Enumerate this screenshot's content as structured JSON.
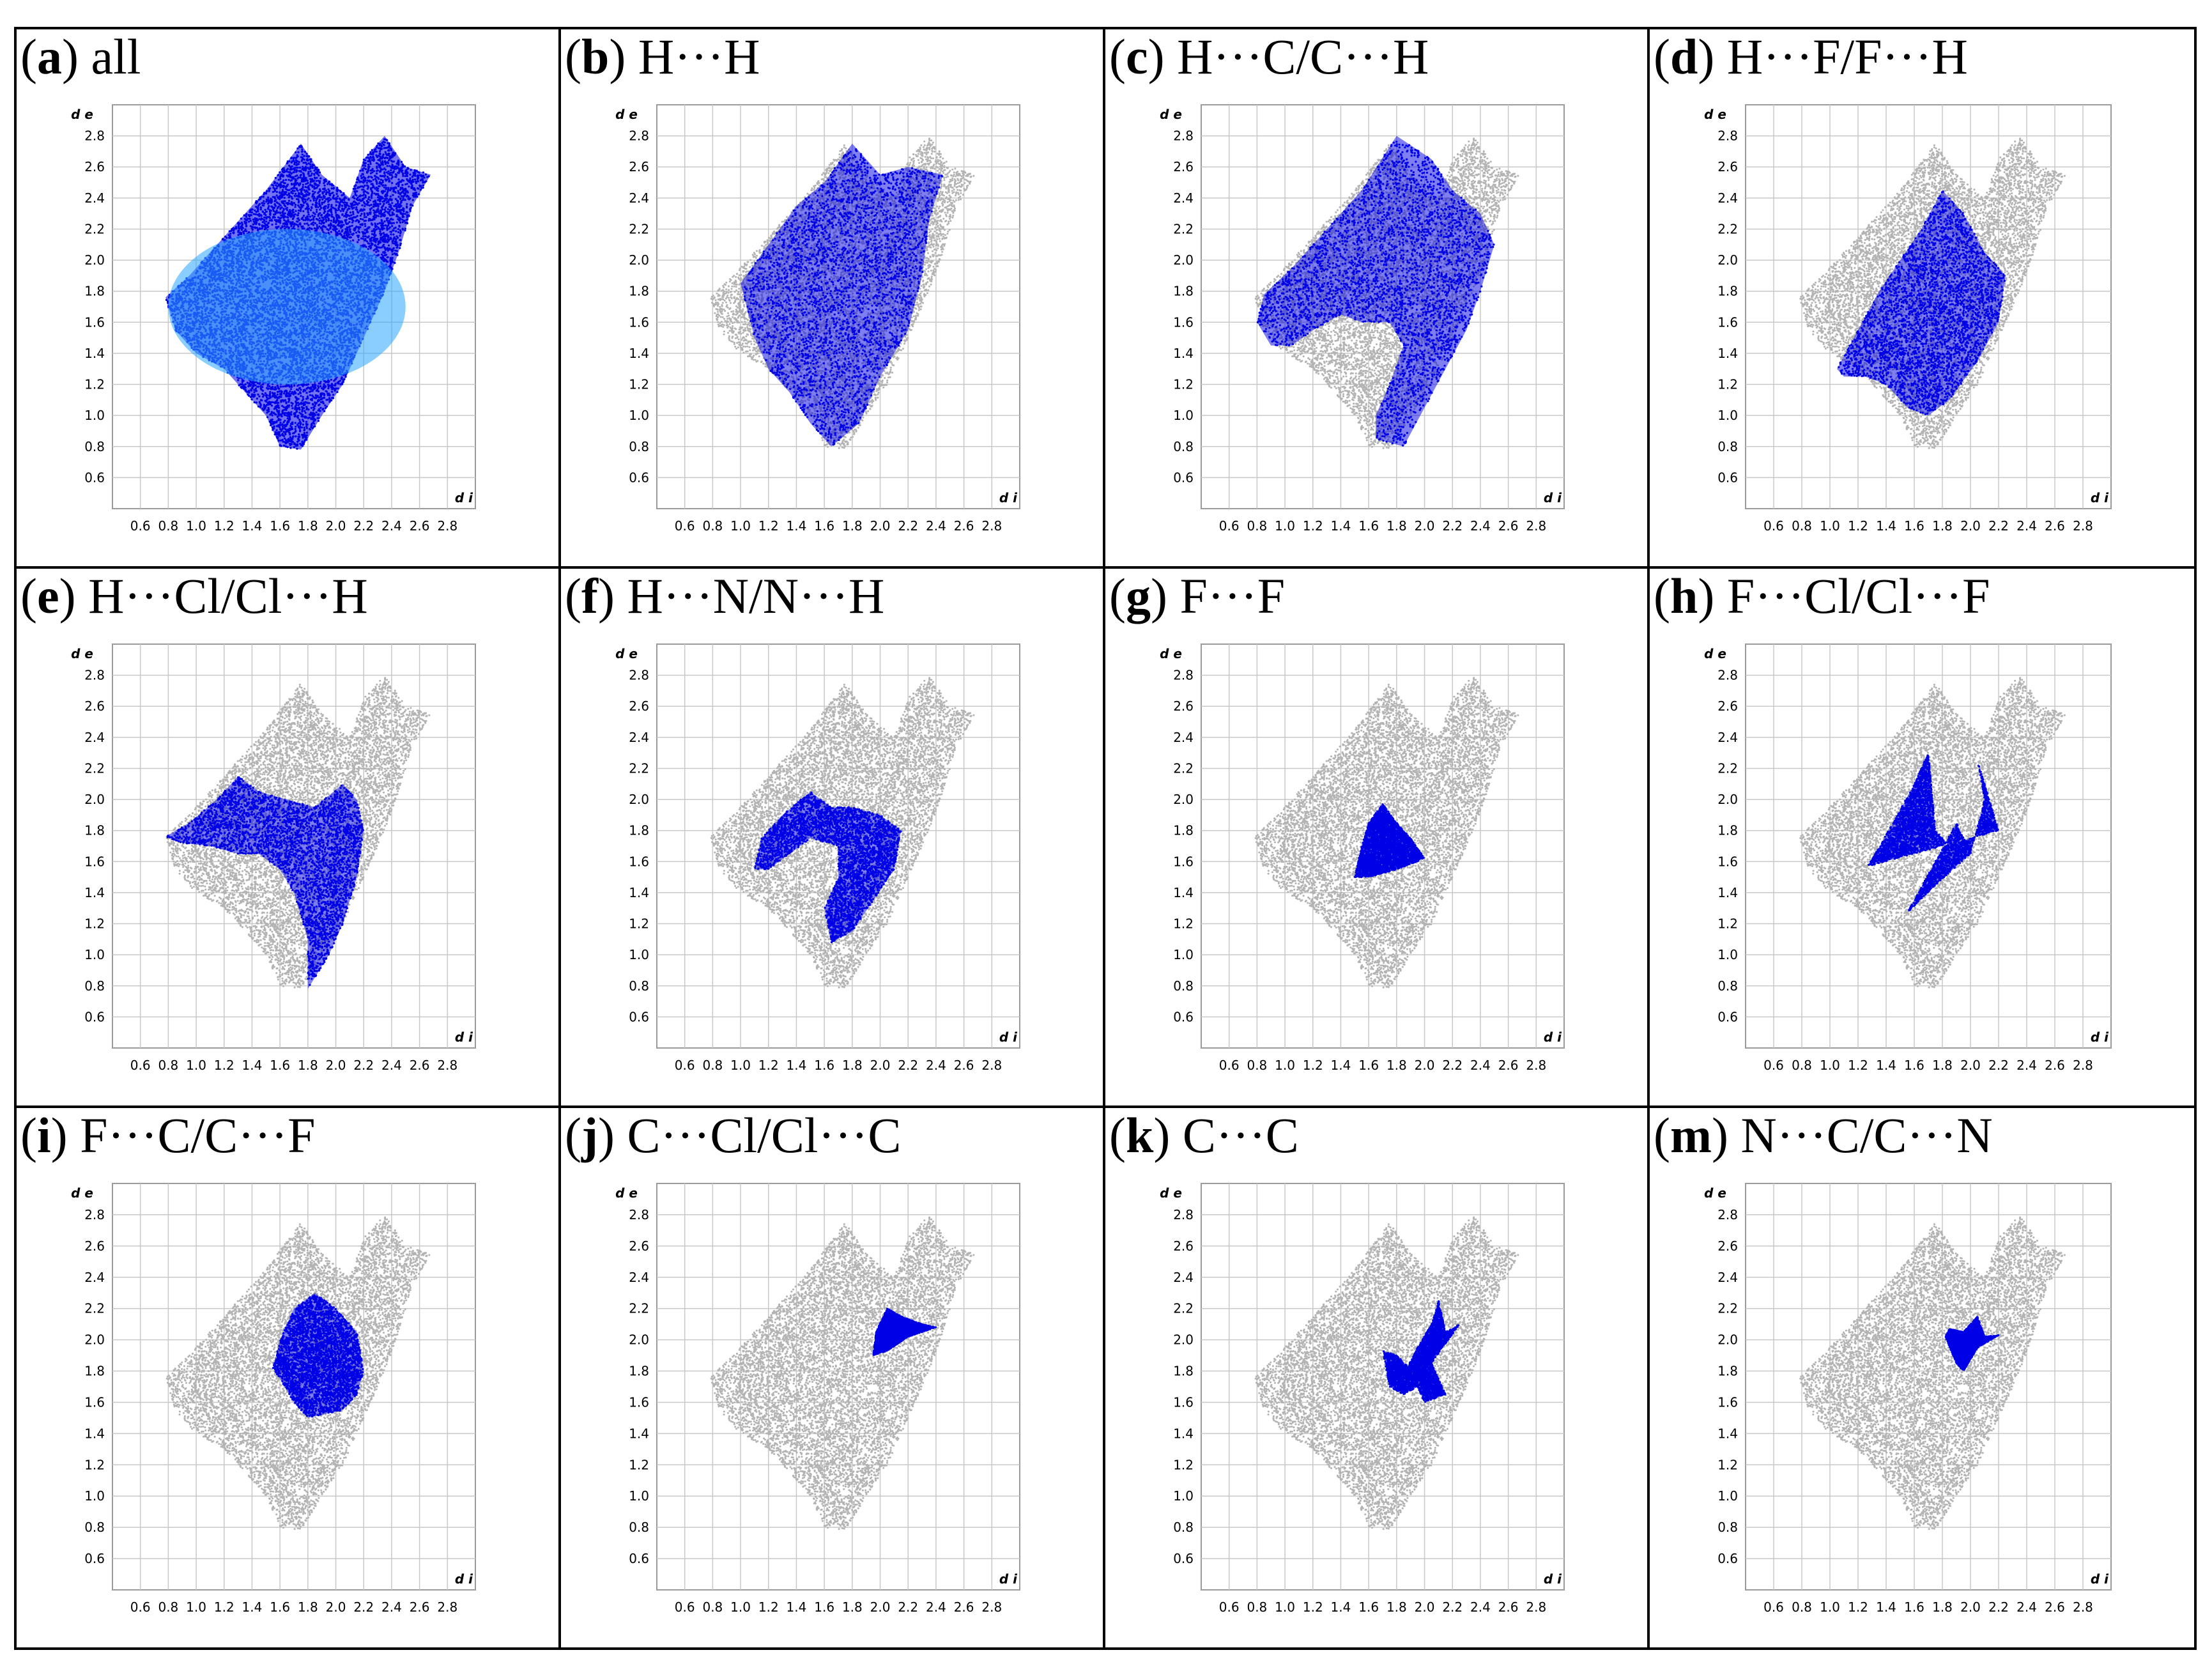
{
  "figure": {
    "colors": {
      "background_points": "#b3b3b3",
      "highlight_points": "#0000e6",
      "gridline": "#c8c8c8"
    }
  },
  "chart_data": [
    {
      "label": "a",
      "title": "all",
      "type": "scatter",
      "xlabel": "d i",
      "ylabel": "d e",
      "xlim": [
        0.4,
        3.0
      ],
      "ylim": [
        0.4,
        3.0
      ],
      "x_ticks": [
        "0.6",
        "0.8",
        "1.0",
        "1.2",
        "1.4",
        "1.6",
        "1.8",
        "2.0",
        "2.2",
        "2.4",
        "2.6",
        "2.8"
      ],
      "y_ticks": [
        "0.6",
        "0.8",
        "1.0",
        "1.2",
        "1.4",
        "1.6",
        "1.8",
        "2.0",
        "2.2",
        "2.4",
        "2.6",
        "2.8"
      ],
      "highlight": [
        [
          0.78,
          1.76
        ],
        [
          0.95,
          1.9
        ],
        [
          1.1,
          2.05
        ],
        [
          1.3,
          2.25
        ],
        [
          1.5,
          2.45
        ],
        [
          1.75,
          2.75
        ],
        [
          1.9,
          2.55
        ],
        [
          2.1,
          2.4
        ],
        [
          2.2,
          2.65
        ],
        [
          2.35,
          2.8
        ],
        [
          2.5,
          2.6
        ],
        [
          2.68,
          2.55
        ],
        [
          2.55,
          2.35
        ],
        [
          2.45,
          2.05
        ],
        [
          2.35,
          1.8
        ],
        [
          2.2,
          1.5
        ],
        [
          2.05,
          1.2
        ],
        [
          1.9,
          1.0
        ],
        [
          1.75,
          0.78
        ],
        [
          1.6,
          0.8
        ],
        [
          1.5,
          1.0
        ],
        [
          1.35,
          1.15
        ],
        [
          1.2,
          1.3
        ],
        [
          1.0,
          1.4
        ],
        [
          0.85,
          1.55
        ]
      ]
    },
    {
      "label": "b",
      "title": "H···H",
      "type": "scatter",
      "xlabel": "d i",
      "ylabel": "d e",
      "xlim": [
        0.4,
        3.0
      ],
      "ylim": [
        0.4,
        3.0
      ],
      "x_ticks": [
        "0.6",
        "0.8",
        "1.0",
        "1.2",
        "1.4",
        "1.6",
        "1.8",
        "2.0",
        "2.2",
        "2.4",
        "2.6",
        "2.8"
      ],
      "y_ticks": [
        "0.6",
        "0.8",
        "1.0",
        "1.2",
        "1.4",
        "1.6",
        "1.8",
        "2.0",
        "2.2",
        "2.4",
        "2.6",
        "2.8"
      ],
      "highlight": [
        [
          1.0,
          1.85
        ],
        [
          1.2,
          2.1
        ],
        [
          1.4,
          2.35
        ],
        [
          1.6,
          2.5
        ],
        [
          1.8,
          2.75
        ],
        [
          2.0,
          2.55
        ],
        [
          2.2,
          2.6
        ],
        [
          2.45,
          2.55
        ],
        [
          2.35,
          2.25
        ],
        [
          2.3,
          1.9
        ],
        [
          2.2,
          1.55
        ],
        [
          2.0,
          1.25
        ],
        [
          1.85,
          0.95
        ],
        [
          1.65,
          0.8
        ],
        [
          1.5,
          0.95
        ],
        [
          1.35,
          1.15
        ],
        [
          1.2,
          1.3
        ],
        [
          1.1,
          1.5
        ]
      ]
    },
    {
      "label": "c",
      "title": "H···C/C···H",
      "type": "scatter",
      "xlabel": "d i",
      "ylabel": "d e",
      "xlim": [
        0.4,
        3.0
      ],
      "ylim": [
        0.4,
        3.0
      ],
      "x_ticks": [
        "0.6",
        "0.8",
        "1.0",
        "1.2",
        "1.4",
        "1.6",
        "1.8",
        "2.0",
        "2.2",
        "2.4",
        "2.6",
        "2.8"
      ],
      "y_ticks": [
        "0.6",
        "0.8",
        "1.0",
        "1.2",
        "1.4",
        "1.6",
        "1.8",
        "2.0",
        "2.2",
        "2.4",
        "2.6",
        "2.8"
      ],
      "highlight": [
        [
          0.8,
          1.6
        ],
        [
          0.85,
          1.78
        ],
        [
          1.05,
          1.95
        ],
        [
          1.3,
          2.2
        ],
        [
          1.55,
          2.45
        ],
        [
          1.8,
          2.8
        ],
        [
          2.05,
          2.65
        ],
        [
          2.2,
          2.45
        ],
        [
          2.4,
          2.3
        ],
        [
          2.5,
          2.1
        ],
        [
          2.4,
          1.8
        ],
        [
          2.3,
          1.55
        ],
        [
          2.15,
          1.3
        ],
        [
          2.0,
          1.05
        ],
        [
          1.85,
          0.8
        ],
        [
          1.65,
          0.85
        ],
        [
          1.65,
          1.0
        ],
        [
          1.75,
          1.2
        ],
        [
          1.85,
          1.45
        ],
        [
          1.75,
          1.6
        ],
        [
          1.55,
          1.6
        ],
        [
          1.4,
          1.65
        ],
        [
          1.2,
          1.55
        ],
        [
          1.05,
          1.45
        ],
        [
          0.9,
          1.45
        ]
      ]
    },
    {
      "label": "d",
      "title": "H···F/F···H",
      "type": "scatter",
      "xlabel": "d i",
      "ylabel": "d e",
      "xlim": [
        0.4,
        3.0
      ],
      "ylim": [
        0.4,
        3.0
      ],
      "x_ticks": [
        "0.6",
        "0.8",
        "1.0",
        "1.2",
        "1.4",
        "1.6",
        "1.8",
        "2.0",
        "2.2",
        "2.4",
        "2.6",
        "2.8"
      ],
      "y_ticks": [
        "0.6",
        "0.8",
        "1.0",
        "1.2",
        "1.4",
        "1.6",
        "1.8",
        "2.0",
        "2.2",
        "2.4",
        "2.6",
        "2.8"
      ],
      "highlight": [
        [
          1.05,
          1.3
        ],
        [
          1.2,
          1.55
        ],
        [
          1.35,
          1.8
        ],
        [
          1.5,
          2.0
        ],
        [
          1.65,
          2.2
        ],
        [
          1.8,
          2.45
        ],
        [
          1.95,
          2.3
        ],
        [
          2.1,
          2.05
        ],
        [
          2.25,
          1.9
        ],
        [
          2.2,
          1.6
        ],
        [
          2.05,
          1.35
        ],
        [
          1.85,
          1.1
        ],
        [
          1.7,
          1.0
        ],
        [
          1.55,
          1.05
        ],
        [
          1.4,
          1.2
        ],
        [
          1.25,
          1.25
        ],
        [
          1.1,
          1.25
        ]
      ]
    },
    {
      "label": "e",
      "title": "H···Cl/Cl···H",
      "type": "scatter",
      "xlabel": "d i",
      "ylabel": "d e",
      "xlim": [
        0.4,
        3.0
      ],
      "ylim": [
        0.4,
        3.0
      ],
      "x_ticks": [
        "0.6",
        "0.8",
        "1.0",
        "1.2",
        "1.4",
        "1.6",
        "1.8",
        "2.0",
        "2.2",
        "2.4",
        "2.6",
        "2.8"
      ],
      "y_ticks": [
        "0.6",
        "0.8",
        "1.0",
        "1.2",
        "1.4",
        "1.6",
        "1.8",
        "2.0",
        "2.2",
        "2.4",
        "2.6",
        "2.8"
      ],
      "highlight": [
        [
          0.78,
          1.76
        ],
        [
          0.95,
          1.85
        ],
        [
          1.15,
          2.0
        ],
        [
          1.3,
          2.15
        ],
        [
          1.45,
          2.05
        ],
        [
          1.65,
          2.0
        ],
        [
          1.85,
          1.95
        ],
        [
          2.05,
          2.1
        ],
        [
          2.15,
          2.0
        ],
        [
          2.2,
          1.8
        ],
        [
          2.15,
          1.5
        ],
        [
          2.05,
          1.2
        ],
        [
          1.95,
          1.0
        ],
        [
          1.8,
          0.78
        ],
        [
          1.8,
          1.1
        ],
        [
          1.7,
          1.4
        ],
        [
          1.6,
          1.55
        ],
        [
          1.45,
          1.65
        ],
        [
          1.3,
          1.65
        ],
        [
          1.1,
          1.7
        ],
        [
          0.9,
          1.72
        ]
      ]
    },
    {
      "label": "f",
      "title": "H···N/N···H",
      "type": "scatter",
      "xlabel": "d i",
      "ylabel": "d e",
      "xlim": [
        0.4,
        3.0
      ],
      "ylim": [
        0.4,
        3.0
      ],
      "x_ticks": [
        "0.6",
        "0.8",
        "1.0",
        "1.2",
        "1.4",
        "1.6",
        "1.8",
        "2.0",
        "2.2",
        "2.4",
        "2.6",
        "2.8"
      ],
      "y_ticks": [
        "0.6",
        "0.8",
        "1.0",
        "1.2",
        "1.4",
        "1.6",
        "1.8",
        "2.0",
        "2.2",
        "2.4",
        "2.6",
        "2.8"
      ],
      "highlight": [
        [
          1.1,
          1.55
        ],
        [
          1.15,
          1.75
        ],
        [
          1.3,
          1.9
        ],
        [
          1.5,
          2.05
        ],
        [
          1.65,
          1.95
        ],
        [
          1.8,
          1.95
        ],
        [
          2.0,
          1.9
        ],
        [
          2.15,
          1.8
        ],
        [
          2.1,
          1.55
        ],
        [
          1.95,
          1.35
        ],
        [
          1.8,
          1.15
        ],
        [
          1.65,
          1.08
        ],
        [
          1.6,
          1.3
        ],
        [
          1.7,
          1.5
        ],
        [
          1.7,
          1.7
        ],
        [
          1.5,
          1.75
        ],
        [
          1.35,
          1.65
        ],
        [
          1.2,
          1.55
        ]
      ]
    },
    {
      "label": "g",
      "title": "F···F",
      "type": "scatter",
      "xlabel": "d i",
      "ylabel": "d e",
      "xlim": [
        0.4,
        3.0
      ],
      "ylim": [
        0.4,
        3.0
      ],
      "x_ticks": [
        "0.6",
        "0.8",
        "1.0",
        "1.2",
        "1.4",
        "1.6",
        "1.8",
        "2.0",
        "2.2",
        "2.4",
        "2.6",
        "2.8"
      ],
      "y_ticks": [
        "0.6",
        "0.8",
        "1.0",
        "1.2",
        "1.4",
        "1.6",
        "1.8",
        "2.0",
        "2.2",
        "2.4",
        "2.6",
        "2.8"
      ],
      "highlight": [
        [
          1.5,
          1.5
        ],
        [
          1.55,
          1.7
        ],
        [
          1.6,
          1.85
        ],
        [
          1.7,
          1.97
        ],
        [
          1.8,
          1.85
        ],
        [
          1.9,
          1.75
        ],
        [
          2.0,
          1.62
        ],
        [
          1.8,
          1.55
        ],
        [
          1.6,
          1.5
        ]
      ]
    },
    {
      "label": "h",
      "title": "F···Cl/Cl···F",
      "type": "scatter",
      "xlabel": "d i",
      "ylabel": "d e",
      "xlim": [
        0.4,
        3.0
      ],
      "ylim": [
        0.4,
        3.0
      ],
      "x_ticks": [
        "0.6",
        "0.8",
        "1.0",
        "1.2",
        "1.4",
        "1.6",
        "1.8",
        "2.0",
        "2.2",
        "2.4",
        "2.6",
        "2.8"
      ],
      "y_ticks": [
        "0.6",
        "0.8",
        "1.0",
        "1.2",
        "1.4",
        "1.6",
        "1.8",
        "2.0",
        "2.2",
        "2.4",
        "2.6",
        "2.8"
      ],
      "highlight": [
        [
          1.27,
          1.57
        ],
        [
          1.45,
          1.85
        ],
        [
          1.6,
          2.1
        ],
        [
          1.7,
          2.3
        ],
        [
          1.75,
          1.8
        ],
        [
          1.85,
          1.7
        ],
        [
          1.95,
          1.75
        ],
        [
          1.9,
          1.85
        ],
        [
          1.55,
          1.27
        ],
        [
          1.75,
          1.45
        ],
        [
          2.0,
          1.65
        ],
        [
          2.1,
          2.0
        ],
        [
          2.05,
          2.25
        ],
        [
          2.2,
          1.8
        ]
      ]
    },
    {
      "label": "i",
      "title": "F···C/C···F",
      "type": "scatter",
      "xlabel": "d i",
      "ylabel": "d e",
      "xlim": [
        0.4,
        3.0
      ],
      "ylim": [
        0.4,
        3.0
      ],
      "x_ticks": [
        "0.6",
        "0.8",
        "1.0",
        "1.2",
        "1.4",
        "1.6",
        "1.8",
        "2.0",
        "2.2",
        "2.4",
        "2.6",
        "2.8"
      ],
      "y_ticks": [
        "0.6",
        "0.8",
        "1.0",
        "1.2",
        "1.4",
        "1.6",
        "1.8",
        "2.0",
        "2.2",
        "2.4",
        "2.6",
        "2.8"
      ],
      "highlight": [
        [
          1.55,
          1.82
        ],
        [
          1.6,
          2.0
        ],
        [
          1.7,
          2.2
        ],
        [
          1.85,
          2.3
        ],
        [
          2.0,
          2.2
        ],
        [
          2.15,
          2.05
        ],
        [
          2.2,
          1.8
        ],
        [
          2.15,
          1.65
        ],
        [
          2.05,
          1.55
        ],
        [
          1.8,
          1.5
        ],
        [
          1.7,
          1.6
        ],
        [
          1.6,
          1.75
        ]
      ]
    },
    {
      "label": "j",
      "title": "C···Cl/Cl···C",
      "type": "scatter",
      "xlabel": "d i",
      "ylabel": "d e",
      "xlim": [
        0.4,
        3.0
      ],
      "ylim": [
        0.4,
        3.0
      ],
      "x_ticks": [
        "0.6",
        "0.8",
        "1.0",
        "1.2",
        "1.4",
        "1.6",
        "1.8",
        "2.0",
        "2.2",
        "2.4",
        "2.6",
        "2.8"
      ],
      "y_ticks": [
        "0.6",
        "0.8",
        "1.0",
        "1.2",
        "1.4",
        "1.6",
        "1.8",
        "2.0",
        "2.2",
        "2.4",
        "2.6",
        "2.8"
      ],
      "highlight": [
        [
          1.95,
          1.9
        ],
        [
          1.97,
          2.05
        ],
        [
          2.05,
          2.2
        ],
        [
          2.15,
          2.15
        ],
        [
          2.3,
          2.1
        ],
        [
          2.4,
          2.08
        ],
        [
          2.2,
          2.02
        ],
        [
          2.05,
          1.93
        ]
      ]
    },
    {
      "label": "k",
      "title": "C···C",
      "type": "scatter",
      "xlabel": "d i",
      "ylabel": "d e",
      "xlim": [
        0.4,
        3.0
      ],
      "ylim": [
        0.4,
        3.0
      ],
      "x_ticks": [
        "0.6",
        "0.8",
        "1.0",
        "1.2",
        "1.4",
        "1.6",
        "1.8",
        "2.0",
        "2.2",
        "2.4",
        "2.6",
        "2.8"
      ],
      "y_ticks": [
        "0.6",
        "0.8",
        "1.0",
        "1.2",
        "1.4",
        "1.6",
        "1.8",
        "2.0",
        "2.2",
        "2.4",
        "2.6",
        "2.8"
      ],
      "highlight": [
        [
          1.7,
          1.93
        ],
        [
          1.8,
          1.9
        ],
        [
          1.88,
          1.83
        ],
        [
          1.95,
          1.95
        ],
        [
          2.05,
          2.1
        ],
        [
          2.1,
          2.25
        ],
        [
          2.15,
          2.05
        ],
        [
          2.25,
          2.1
        ],
        [
          2.05,
          1.85
        ],
        [
          2.15,
          1.65
        ],
        [
          2.0,
          1.6
        ],
        [
          1.95,
          1.7
        ],
        [
          1.85,
          1.65
        ],
        [
          1.75,
          1.7
        ]
      ]
    },
    {
      "label": "m",
      "title": "N···C/C···N",
      "type": "scatter",
      "xlabel": "d i",
      "ylabel": "d e",
      "xlim": [
        0.4,
        3.0
      ],
      "ylim": [
        0.4,
        3.0
      ],
      "x_ticks": [
        "0.6",
        "0.8",
        "1.0",
        "1.2",
        "1.4",
        "1.6",
        "1.8",
        "2.0",
        "2.2",
        "2.4",
        "2.6",
        "2.8"
      ],
      "y_ticks": [
        "0.6",
        "0.8",
        "1.0",
        "1.2",
        "1.4",
        "1.6",
        "1.8",
        "2.0",
        "2.2",
        "2.4",
        "2.6",
        "2.8"
      ],
      "highlight": [
        [
          1.82,
          2.02
        ],
        [
          1.85,
          2.07
        ],
        [
          1.95,
          2.05
        ],
        [
          2.05,
          2.15
        ],
        [
          2.1,
          2.02
        ],
        [
          2.2,
          2.03
        ],
        [
          2.05,
          1.95
        ],
        [
          1.95,
          1.8
        ],
        [
          1.9,
          1.85
        ]
      ]
    }
  ]
}
